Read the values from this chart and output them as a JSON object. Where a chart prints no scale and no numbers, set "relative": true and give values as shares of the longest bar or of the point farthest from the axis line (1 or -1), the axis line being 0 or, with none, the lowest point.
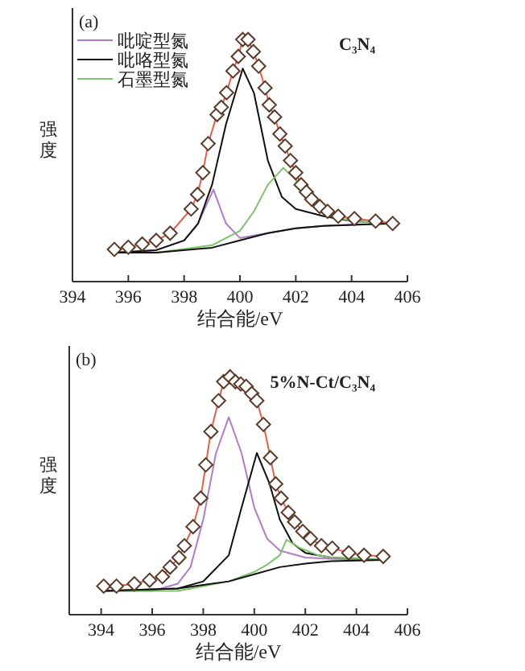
{
  "chart_data": [
    {
      "type": "line",
      "relative": true,
      "xlim": [
        394,
        406
      ],
      "xticks": [
        394,
        396,
        398,
        400,
        402,
        404,
        406
      ],
      "xlabel": "结合能/eV",
      "ylabel": "强度",
      "legend": "top left",
      "annotations": [
        "(a)",
        "C₃N₄"
      ],
      "series": [
        {
          "name": "吡啶型氮",
          "color": "#b07cc6",
          "x": [
            395.5,
            397,
            398,
            398.5,
            399.05,
            399.5,
            400,
            401,
            402,
            403,
            404,
            405.5
          ],
          "values": [
            0.12,
            0.13,
            0.17,
            0.24,
            0.38,
            0.24,
            0.18,
            0.2,
            0.22,
            0.23,
            0.235,
            0.24
          ]
        },
        {
          "name": "吡咯型氮",
          "color": "#111111",
          "x": [
            395.5,
            397,
            398,
            398.5,
            399,
            399.5,
            400.1,
            400.5,
            401,
            401.5,
            402,
            403,
            404,
            405.5
          ],
          "values": [
            0.12,
            0.13,
            0.17,
            0.24,
            0.4,
            0.65,
            0.88,
            0.78,
            0.5,
            0.35,
            0.3,
            0.27,
            0.25,
            0.24
          ]
        },
        {
          "name": "石墨型氮",
          "color": "#7dc36b",
          "x": [
            395.5,
            397,
            399,
            400,
            400.5,
            401,
            401.55,
            402,
            402.5,
            403,
            404,
            405.5
          ],
          "values": [
            0.12,
            0.12,
            0.15,
            0.21,
            0.29,
            0.4,
            0.47,
            0.42,
            0.33,
            0.28,
            0.25,
            0.24
          ]
        },
        {
          "color": "#111111",
          "x": [
            395.5,
            397,
            399,
            400,
            401,
            402,
            403,
            405.5
          ],
          "values": [
            0.12,
            0.12,
            0.14,
            0.17,
            0.2,
            0.22,
            0.23,
            0.24
          ]
        },
        {
          "color": "#e0604a",
          "x": [
            395.5,
            396,
            396.5,
            397,
            397.5,
            398.25,
            398.48,
            398.67,
            398.86,
            399.18,
            399.33,
            399.52,
            399.75,
            399.94,
            400.1,
            400.29,
            400.48,
            400.67,
            400.9,
            401.05,
            401.24,
            401.43,
            401.62,
            401.81,
            402,
            402.19,
            402.38,
            402.57,
            402.86,
            403.14,
            403.52,
            404.1,
            404.86,
            405.47
          ],
          "values": [
            0.133,
            0.142,
            0.155,
            0.17,
            0.2,
            0.3,
            0.36,
            0.45,
            0.57,
            0.69,
            0.72,
            0.78,
            0.87,
            0.93,
            1,
            1,
            0.95,
            0.89,
            0.8,
            0.73,
            0.68,
            0.61,
            0.56,
            0.5,
            0.45,
            0.4,
            0.37,
            0.34,
            0.31,
            0.29,
            0.27,
            0.26,
            0.25,
            0.24
          ]
        },
        {
          "type": "scatter",
          "marker": "diamond",
          "color": "#5a3a2a",
          "x": [
            395.5,
            396,
            396.5,
            397,
            397.5,
            398.25,
            398.48,
            398.67,
            398.86,
            399.18,
            399.33,
            399.52,
            399.75,
            399.94,
            400.1,
            400.29,
            400.48,
            400.67,
            400.9,
            401.05,
            401.24,
            401.43,
            401.62,
            401.81,
            402,
            402.19,
            402.38,
            402.57,
            402.86,
            403.14,
            403.52,
            404.1,
            404.86,
            405.47
          ],
          "values": [
            0.133,
            0.142,
            0.155,
            0.17,
            0.2,
            0.3,
            0.36,
            0.45,
            0.57,
            0.69,
            0.72,
            0.78,
            0.87,
            0.93,
            1,
            1,
            0.95,
            0.89,
            0.8,
            0.73,
            0.68,
            0.61,
            0.56,
            0.5,
            0.45,
            0.4,
            0.37,
            0.34,
            0.31,
            0.29,
            0.27,
            0.26,
            0.25,
            0.24
          ]
        }
      ]
    },
    {
      "type": "line",
      "relative": true,
      "xlim": [
        392.75,
        406
      ],
      "xticks": [
        394,
        396,
        398,
        400,
        402,
        404,
        406
      ],
      "xlabel": "结合能/eV",
      "ylabel": "强度",
      "annotations": [
        "(b)",
        "5%N-Ct/C₃N₄"
      ],
      "series": [
        {
          "color": "#b07cc6",
          "x": [
            394.1,
            396,
            397,
            397.5,
            398,
            398.5,
            399,
            399.5,
            400,
            400.5,
            401,
            402,
            403,
            405
          ],
          "values": [
            0.1,
            0.1,
            0.13,
            0.2,
            0.4,
            0.68,
            0.83,
            0.68,
            0.45,
            0.32,
            0.27,
            0.24,
            0.235,
            0.23
          ]
        },
        {
          "color": "#111111",
          "x": [
            394.1,
            397,
            398,
            399,
            399.5,
            400.1,
            400.6,
            401,
            401.5,
            402,
            403,
            405
          ],
          "values": [
            0.1,
            0.11,
            0.14,
            0.25,
            0.45,
            0.68,
            0.55,
            0.4,
            0.3,
            0.26,
            0.24,
            0.23
          ]
        },
        {
          "color": "#7dc36b",
          "x": [
            394.1,
            397,
            399,
            400,
            400.5,
            401,
            401.26,
            401.8,
            402.5,
            403,
            405
          ],
          "values": [
            0.1,
            0.1,
            0.14,
            0.18,
            0.21,
            0.25,
            0.315,
            0.28,
            0.25,
            0.24,
            0.23
          ]
        },
        {
          "color": "#111111",
          "x": [
            394.1,
            397,
            399,
            400,
            401,
            402,
            403,
            405
          ],
          "values": [
            0.1,
            0.11,
            0.14,
            0.17,
            0.2,
            0.215,
            0.225,
            0.23
          ]
        },
        {
          "color": "#e0604a",
          "x": [
            394.1,
            394.6,
            395.3,
            395.9,
            396.4,
            396.7,
            397.05,
            397.26,
            397.6,
            397.9,
            398.1,
            398.3,
            398.6,
            398.8,
            399.05,
            399.26,
            399.47,
            399.68,
            399.9,
            400.1,
            400.36,
            400.63,
            400.84,
            401.05,
            401.33,
            401.58,
            401.9,
            402.2,
            402.63,
            403.05,
            403.7,
            404.3,
            405.05
          ],
          "values": [
            0.12,
            0.12,
            0.13,
            0.145,
            0.16,
            0.2,
            0.24,
            0.29,
            0.37,
            0.49,
            0.63,
            0.77,
            0.9,
            0.98,
            1,
            0.98,
            0.97,
            0.96,
            0.93,
            0.9,
            0.8,
            0.66,
            0.55,
            0.49,
            0.43,
            0.39,
            0.35,
            0.32,
            0.29,
            0.28,
            0.26,
            0.25,
            0.245
          ]
        },
        {
          "type": "scatter",
          "marker": "diamond",
          "color": "#5a3a2a",
          "x": [
            394.1,
            394.6,
            395.3,
            395.9,
            396.4,
            396.7,
            397.05,
            397.26,
            397.6,
            397.9,
            398.1,
            398.3,
            398.6,
            398.8,
            399.05,
            399.26,
            399.47,
            399.68,
            399.9,
            400.1,
            400.36,
            400.63,
            400.84,
            401.05,
            401.33,
            401.58,
            401.9,
            402.2,
            402.63,
            403.05,
            403.7,
            404.3,
            405.05
          ],
          "values": [
            0.12,
            0.12,
            0.13,
            0.145,
            0.16,
            0.2,
            0.24,
            0.29,
            0.37,
            0.49,
            0.63,
            0.77,
            0.9,
            0.98,
            1,
            0.98,
            0.97,
            0.96,
            0.93,
            0.9,
            0.8,
            0.66,
            0.55,
            0.49,
            0.43,
            0.39,
            0.35,
            0.32,
            0.29,
            0.28,
            0.26,
            0.25,
            0.245
          ]
        }
      ]
    }
  ]
}
